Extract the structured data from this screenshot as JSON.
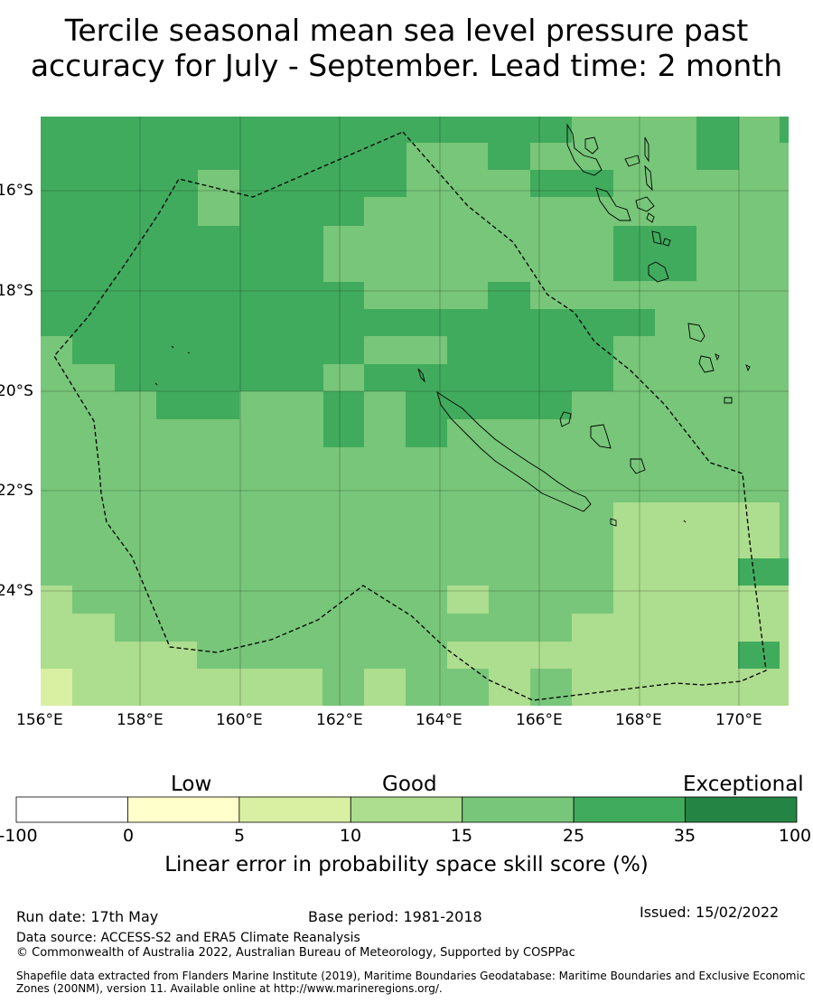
{
  "title": {
    "line1": "Tercile seasonal mean sea level pressure past",
    "line2": "accuracy for July - September. Lead time: 2 month"
  },
  "map": {
    "lon_range": [
      156,
      171
    ],
    "lat_range": [
      -26.5,
      -14.7
    ],
    "lon_ticks": [
      "156°E",
      "158°E",
      "160°E",
      "162°E",
      "164°E",
      "166°E",
      "168°E",
      "170°E"
    ],
    "lat_ticks": [
      "16°S",
      "18°S",
      "20°S",
      "22°S",
      "24°S"
    ],
    "gridlines": true,
    "boundary": "dashed EEZ outline"
  },
  "colorbar": {
    "headings": {
      "low": "Low",
      "good": "Good",
      "exceptional": "Exceptional"
    },
    "tick_labels": [
      "-100",
      "0",
      "5",
      "10",
      "15",
      "25",
      "35",
      "100"
    ],
    "colors": [
      "#ffffff",
      "#ffffcc",
      "#d9f0a3",
      "#addd8e",
      "#78c679",
      "#41ab5d",
      "#238443"
    ],
    "title": "Linear error in probability space skill score (%)"
  },
  "footer": {
    "run_date": "Run date: 17th May",
    "base_period": "Base period: 1981-2018",
    "issued": "Issued: 15/02/2022",
    "data_source": "Data source: ACCESS-S2 and ERA5 Climate Reanalysis",
    "copyright": "© Commonwealth of Australia 2022, Australian Bureau of Meteorology, Supported by COSPPac",
    "shapefile_line1": "Shapefile data extracted from Flanders Marine Institute (2019), Maritime Boundaries Geodatabase: Maritime Boundaries and Exclusive Economic",
    "shapefile_line2": "Zones (200NM), version 11. Available online at http://www.marineregions.org/."
  }
}
